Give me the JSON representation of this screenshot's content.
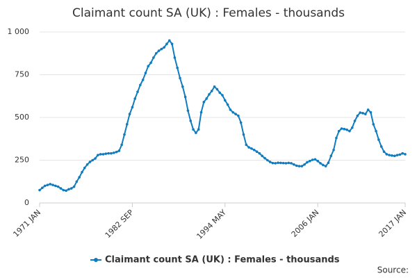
{
  "chart_data": {
    "type": "line",
    "title": "Claimant count SA (UK) : Females - thousands",
    "x": [
      "1971 JAN",
      null,
      null,
      null,
      null,
      null,
      null,
      null,
      null,
      null,
      null,
      null,
      null,
      null,
      null,
      null,
      null,
      null,
      null,
      null,
      null,
      null,
      null,
      null,
      null,
      null,
      null,
      null,
      null,
      null,
      null,
      null,
      null,
      null,
      null,
      "1982 SEP",
      null,
      null,
      null,
      null,
      null,
      null,
      null,
      null,
      null,
      null,
      null,
      null,
      null,
      null,
      null,
      null,
      null,
      null,
      null,
      null,
      null,
      null,
      null,
      null,
      null,
      null,
      null,
      null,
      null,
      null,
      null,
      null,
      null,
      null,
      "1994 MAY",
      null,
      null,
      null,
      null,
      null,
      null,
      null,
      null,
      null,
      null,
      null,
      null,
      null,
      null,
      null,
      null,
      null,
      null,
      null,
      null,
      null,
      null,
      null,
      null,
      null,
      null,
      null,
      null,
      null,
      null,
      null,
      null,
      null,
      null,
      "2006 JAN",
      null,
      null,
      null,
      null,
      null,
      null,
      null,
      null,
      null,
      null,
      null,
      null,
      null,
      null,
      null,
      null,
      null,
      null,
      null,
      null,
      null,
      null,
      null,
      null,
      null,
      null,
      null,
      null,
      null,
      null,
      null,
      null,
      "2017 JAN"
    ],
    "series": [
      {
        "name": "Claimant count SA (UK) : Females - thousands",
        "color": "#0f7cbf",
        "values": [
          75,
          88,
          100,
          105,
          110,
          105,
          100,
          95,
          85,
          75,
          72,
          80,
          85,
          95,
          125,
          150,
          180,
          205,
          225,
          240,
          250,
          260,
          280,
          285,
          285,
          288,
          290,
          290,
          293,
          298,
          305,
          340,
          400,
          460,
          520,
          560,
          610,
          650,
          690,
          720,
          760,
          800,
          820,
          850,
          875,
          890,
          900,
          910,
          930,
          950,
          930,
          850,
          790,
          730,
          680,
          620,
          540,
          480,
          430,
          410,
          430,
          530,
          590,
          610,
          635,
          655,
          680,
          665,
          645,
          630,
          600,
          575,
          545,
          530,
          520,
          510,
          470,
          400,
          340,
          325,
          318,
          310,
          300,
          290,
          275,
          262,
          250,
          240,
          233,
          232,
          235,
          234,
          233,
          232,
          234,
          232,
          225,
          218,
          215,
          215,
          225,
          238,
          245,
          252,
          255,
          245,
          232,
          222,
          215,
          235,
          275,
          310,
          380,
          420,
          435,
          432,
          428,
          420,
          440,
          480,
          510,
          528,
          525,
          520,
          545,
          530,
          460,
          420,
          370,
          330,
          300,
          285,
          280,
          277,
          275,
          280,
          283,
          290,
          285
        ]
      }
    ],
    "ylim": [
      0,
      1000
    ],
    "yticks": [
      0,
      250,
      500,
      750,
      {
        "value": 1000,
        "label": "1 000"
      }
    ],
    "grid": true,
    "legend": "bottom",
    "source": "Source:"
  }
}
